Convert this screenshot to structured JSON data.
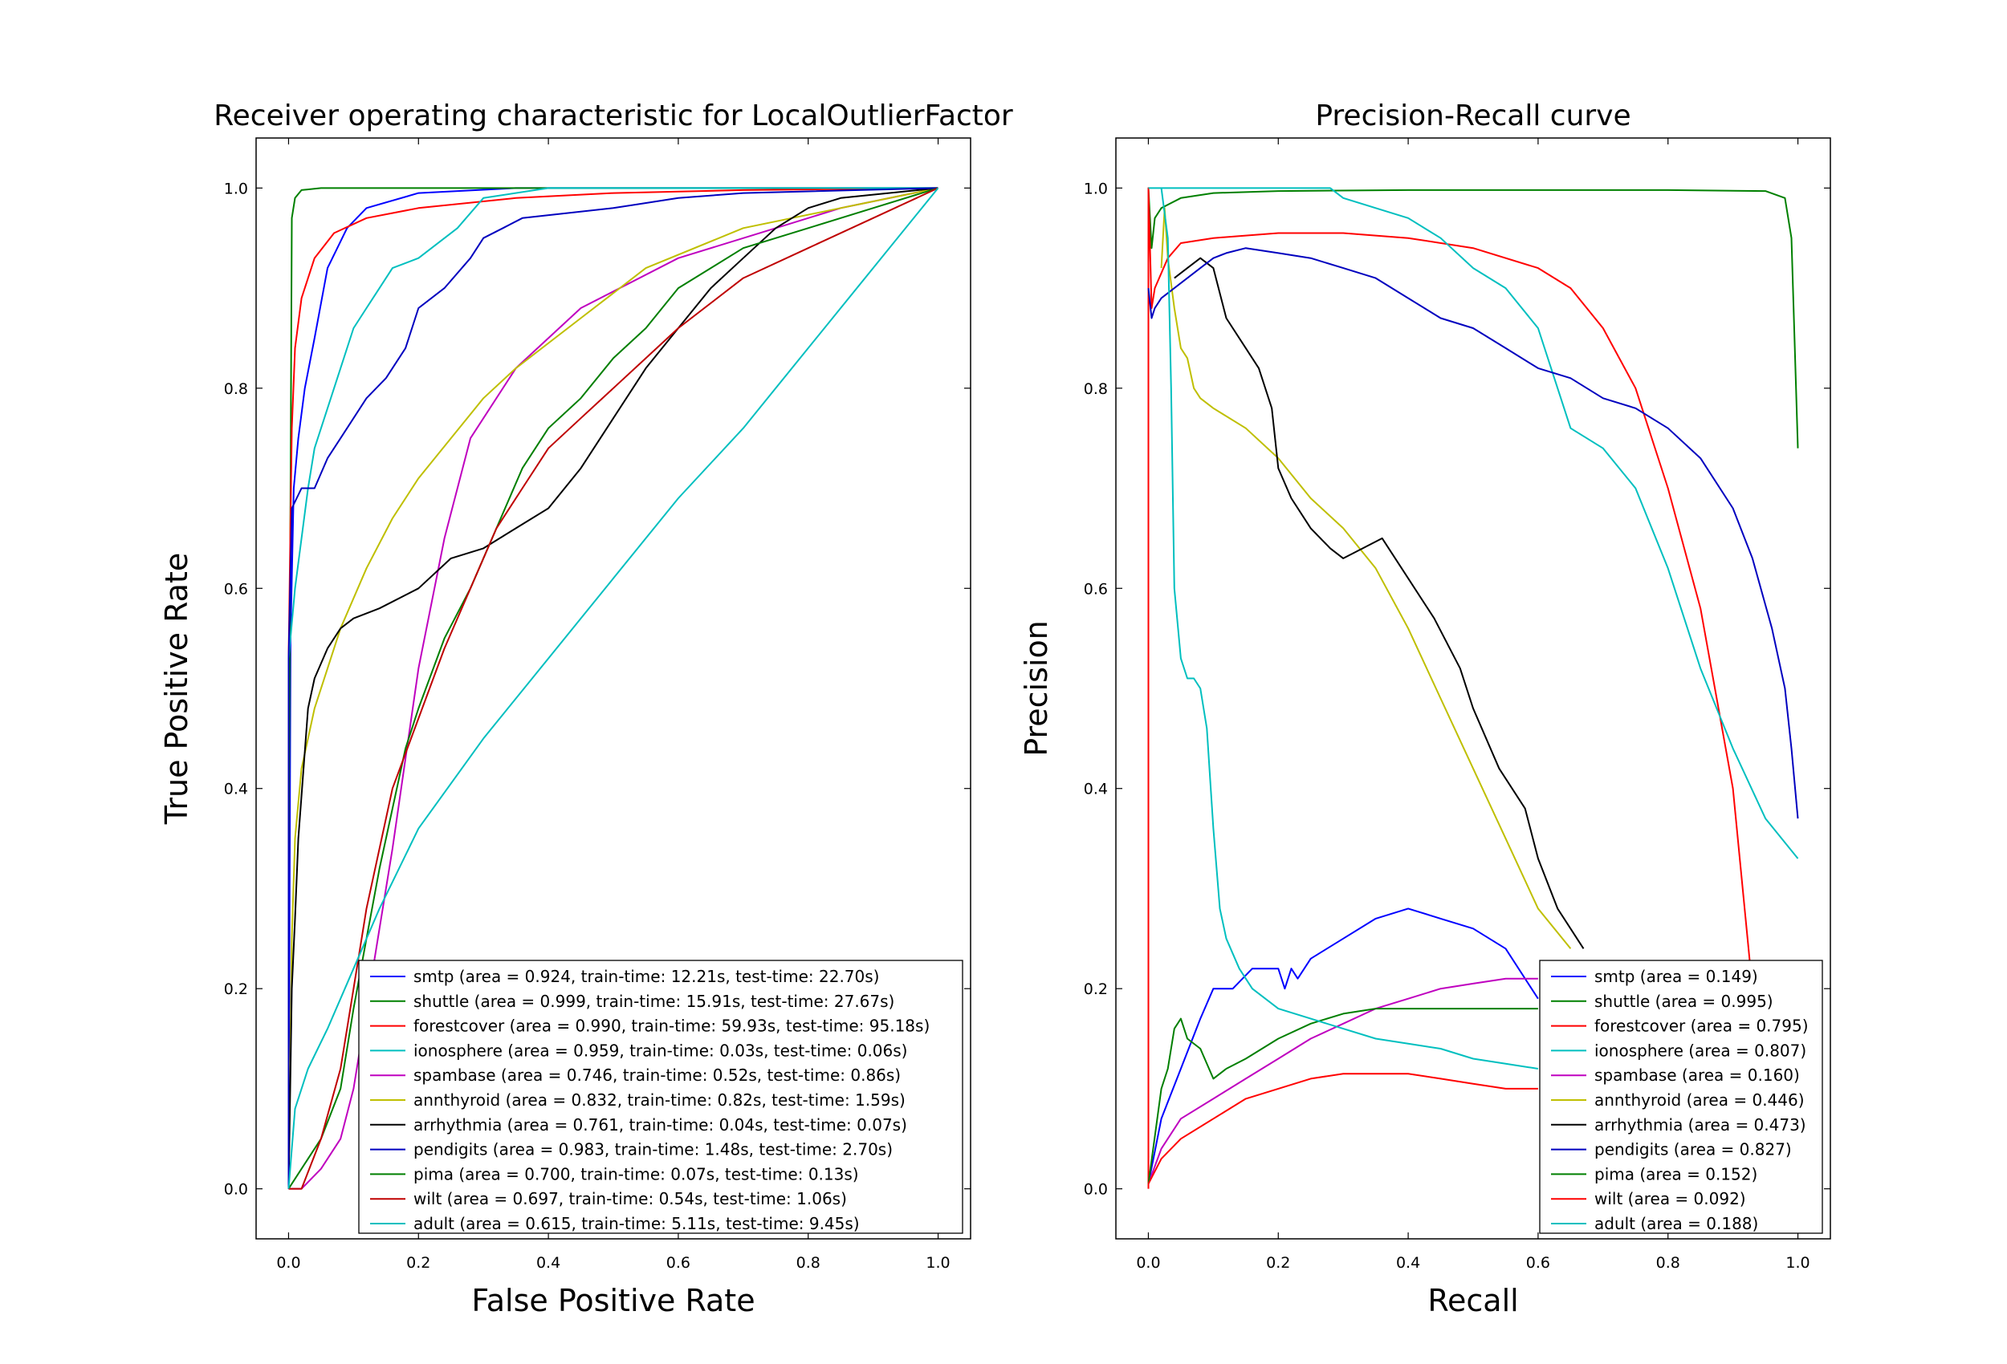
{
  "figure": {
    "panel_titles": [
      "Receiver operating characteristic for LocalOutlierFactor",
      "Precision-Recall curve"
    ]
  },
  "chart_data": [
    {
      "type": "line",
      "title": "Receiver operating characteristic for LocalOutlierFactor",
      "xlabel": "False Positive Rate",
      "ylabel": "True Positive Rate",
      "xlim": [
        -0.05,
        1.05
      ],
      "ylim": [
        -0.05,
        1.05
      ],
      "xticks": [
        "0.0",
        "0.2",
        "0.4",
        "0.6",
        "0.8",
        "1.0"
      ],
      "yticks": [
        "0.0",
        "0.2",
        "0.4",
        "0.6",
        "0.8",
        "1.0"
      ],
      "grid": false,
      "legend_position": "lower-right",
      "series": [
        {
          "name": "smtp (area = 0.924, train-time: 12.21s, test-time: 22.70s)",
          "color": "#0000ff",
          "x": [
            0,
            0.003,
            0.008,
            0.015,
            0.025,
            0.04,
            0.06,
            0.09,
            0.12,
            0.2,
            0.35,
            0.6,
            1.0
          ],
          "y": [
            0,
            0.55,
            0.7,
            0.75,
            0.8,
            0.85,
            0.92,
            0.96,
            0.98,
            0.995,
            1.0,
            1.0,
            1.0
          ]
        },
        {
          "name": "shuttle (area = 0.999, train-time: 15.91s, test-time: 27.67s)",
          "color": "#008000",
          "x": [
            0,
            0.0,
            0.005,
            0.01,
            0.02,
            0.05,
            0.2,
            0.6,
            1.0
          ],
          "y": [
            0,
            0.3,
            0.97,
            0.99,
            0.998,
            1.0,
            1.0,
            1.0,
            1.0
          ]
        },
        {
          "name": "forestcover (area = 0.990, train-time: 59.93s, test-time: 95.18s)",
          "color": "#ff0000",
          "x": [
            0,
            0.0,
            0.005,
            0.01,
            0.02,
            0.04,
            0.07,
            0.12,
            0.2,
            0.35,
            0.5,
            0.7,
            1.0
          ],
          "y": [
            0,
            0.53,
            0.76,
            0.84,
            0.89,
            0.93,
            0.955,
            0.97,
            0.98,
            0.99,
            0.995,
            0.998,
            1.0
          ]
        },
        {
          "name": "ionosphere (area = 0.959, train-time: 0.03s, test-time: 0.06s)",
          "color": "#00bfbf",
          "x": [
            0,
            0.0,
            0.01,
            0.03,
            0.04,
            0.06,
            0.08,
            0.1,
            0.12,
            0.14,
            0.16,
            0.2,
            0.26,
            0.3,
            0.4,
            0.55,
            0.7,
            1.0
          ],
          "y": [
            0,
            0.53,
            0.6,
            0.7,
            0.74,
            0.78,
            0.82,
            0.86,
            0.88,
            0.9,
            0.92,
            0.93,
            0.96,
            0.99,
            1.0,
            1.0,
            1.0,
            1.0
          ]
        },
        {
          "name": "spambase (area = 0.746, train-time: 0.52s, test-time: 0.86s)",
          "color": "#bf00bf",
          "x": [
            0,
            0.02,
            0.05,
            0.08,
            0.1,
            0.12,
            0.14,
            0.16,
            0.18,
            0.2,
            0.24,
            0.28,
            0.35,
            0.45,
            0.6,
            0.75,
            0.85,
            1.0
          ],
          "y": [
            0,
            0.0,
            0.02,
            0.05,
            0.1,
            0.18,
            0.26,
            0.34,
            0.43,
            0.52,
            0.65,
            0.75,
            0.82,
            0.88,
            0.93,
            0.96,
            0.98,
            1.0
          ]
        },
        {
          "name": "annthyroid (area = 0.832, train-time: 0.82s, test-time: 1.59s)",
          "color": "#bfbf00",
          "x": [
            0,
            0.005,
            0.01,
            0.02,
            0.04,
            0.06,
            0.08,
            0.12,
            0.16,
            0.2,
            0.25,
            0.3,
            0.35,
            0.45,
            0.55,
            0.7,
            0.85,
            1.0
          ],
          "y": [
            0,
            0.25,
            0.35,
            0.42,
            0.48,
            0.52,
            0.56,
            0.62,
            0.67,
            0.71,
            0.75,
            0.79,
            0.82,
            0.87,
            0.92,
            0.96,
            0.98,
            1.0
          ]
        },
        {
          "name": "arrhythmia (area = 0.761, train-time: 0.04s, test-time: 0.07s)",
          "color": "#000000",
          "x": [
            0,
            0.005,
            0.01,
            0.015,
            0.03,
            0.04,
            0.06,
            0.08,
            0.1,
            0.14,
            0.2,
            0.25,
            0.3,
            0.35,
            0.4,
            0.45,
            0.5,
            0.55,
            0.6,
            0.65,
            0.7,
            0.75,
            0.8,
            0.85,
            1.0
          ],
          "y": [
            0,
            0.2,
            0.27,
            0.35,
            0.48,
            0.51,
            0.54,
            0.56,
            0.57,
            0.58,
            0.6,
            0.63,
            0.64,
            0.66,
            0.68,
            0.72,
            0.77,
            0.82,
            0.86,
            0.9,
            0.93,
            0.96,
            0.98,
            0.99,
            1.0
          ]
        },
        {
          "name": "pendigits (area = 0.983, train-time: 1.48s, test-time: 2.70s)",
          "color": "#0000bf",
          "x": [
            0,
            0.0,
            0.005,
            0.02,
            0.04,
            0.06,
            0.08,
            0.1,
            0.12,
            0.15,
            0.18,
            0.2,
            0.24,
            0.28,
            0.3,
            0.33,
            0.36,
            0.5,
            0.6,
            0.7,
            1.0
          ],
          "y": [
            0,
            0.53,
            0.68,
            0.7,
            0.7,
            0.73,
            0.75,
            0.77,
            0.79,
            0.81,
            0.84,
            0.88,
            0.9,
            0.93,
            0.95,
            0.96,
            0.97,
            0.98,
            0.99,
            0.995,
            1.0
          ]
        },
        {
          "name": "pima (area = 0.700, train-time: 0.07s, test-time: 0.13s)",
          "color": "#007f00",
          "x": [
            0,
            0.02,
            0.05,
            0.08,
            0.1,
            0.12,
            0.14,
            0.16,
            0.18,
            0.2,
            0.24,
            0.28,
            0.32,
            0.36,
            0.4,
            0.45,
            0.5,
            0.55,
            0.6,
            0.7,
            0.8,
            0.9,
            1.0
          ],
          "y": [
            0,
            0.02,
            0.05,
            0.1,
            0.18,
            0.25,
            0.32,
            0.38,
            0.44,
            0.48,
            0.55,
            0.6,
            0.66,
            0.72,
            0.76,
            0.79,
            0.83,
            0.86,
            0.9,
            0.94,
            0.96,
            0.98,
            1.0
          ]
        },
        {
          "name": "wilt (area = 0.697, train-time: 0.54s, test-time: 1.06s)",
          "color": "#bf0000",
          "x": [
            0,
            0.02,
            0.05,
            0.08,
            0.1,
            0.12,
            0.14,
            0.16,
            0.2,
            0.24,
            0.28,
            0.32,
            0.36,
            0.4,
            0.45,
            0.5,
            0.55,
            0.6,
            0.7,
            0.8,
            0.9,
            1.0
          ],
          "y": [
            0,
            0.0,
            0.05,
            0.12,
            0.2,
            0.28,
            0.34,
            0.4,
            0.47,
            0.54,
            0.6,
            0.66,
            0.7,
            0.74,
            0.77,
            0.8,
            0.83,
            0.86,
            0.91,
            0.94,
            0.97,
            1.0
          ]
        },
        {
          "name": "adult (area = 0.615, train-time: 5.11s, test-time: 9.45s)",
          "color": "#00bfbf",
          "x": [
            0,
            0.01,
            0.03,
            0.06,
            0.1,
            0.14,
            0.2,
            0.3,
            0.4,
            0.5,
            0.6,
            0.7,
            0.8,
            0.9,
            1.0
          ],
          "y": [
            0,
            0.08,
            0.12,
            0.16,
            0.22,
            0.28,
            0.36,
            0.45,
            0.53,
            0.61,
            0.69,
            0.76,
            0.84,
            0.92,
            1.0
          ]
        }
      ]
    },
    {
      "type": "line",
      "title": "Precision-Recall curve",
      "xlabel": "Recall",
      "ylabel": "Precision",
      "xlim": [
        -0.05,
        1.05
      ],
      "ylim": [
        -0.05,
        1.05
      ],
      "xticks": [
        "0.0",
        "0.2",
        "0.4",
        "0.6",
        "0.8",
        "1.0"
      ],
      "yticks": [
        "0.0",
        "0.2",
        "0.4",
        "0.6",
        "0.8",
        "1.0"
      ],
      "grid": false,
      "legend_position": "lower-right",
      "series": [
        {
          "name": "smtp (area = 0.149)",
          "color": "#0000ff",
          "x": [
            0,
            0.02,
            0.05,
            0.08,
            0.1,
            0.13,
            0.16,
            0.2,
            0.21,
            0.22,
            0.23,
            0.25,
            0.3,
            0.35,
            0.4,
            0.45,
            0.5,
            0.55,
            0.6
          ],
          "y": [
            0.005,
            0.07,
            0.12,
            0.17,
            0.2,
            0.2,
            0.22,
            0.22,
            0.2,
            0.22,
            0.21,
            0.23,
            0.25,
            0.27,
            0.28,
            0.27,
            0.26,
            0.24,
            0.19
          ]
        },
        {
          "name": "shuttle (area = 0.995)",
          "color": "#008000",
          "x": [
            0.0,
            0.0,
            0.005,
            0.01,
            0.02,
            0.05,
            0.1,
            0.2,
            0.4,
            0.6,
            0.8,
            0.95,
            0.98,
            0.99,
            1.0
          ],
          "y": [
            0.2,
            1.0,
            0.94,
            0.97,
            0.98,
            0.99,
            0.995,
            0.997,
            0.998,
            0.998,
            0.998,
            0.997,
            0.99,
            0.95,
            0.74
          ]
        },
        {
          "name": "forestcover (area = 0.795)",
          "color": "#ff0000",
          "x": [
            0.0,
            0.0,
            0.005,
            0.01,
            0.03,
            0.05,
            0.1,
            0.2,
            0.3,
            0.4,
            0.5,
            0.6,
            0.65,
            0.7,
            0.75,
            0.8,
            0.85,
            0.9,
            0.93
          ],
          "y": [
            0.0,
            1.0,
            0.88,
            0.9,
            0.93,
            0.945,
            0.95,
            0.955,
            0.955,
            0.95,
            0.94,
            0.92,
            0.9,
            0.86,
            0.8,
            0.7,
            0.58,
            0.4,
            0.2
          ]
        },
        {
          "name": "ionosphere (area = 0.807)",
          "color": "#00bfbf",
          "x": [
            0.0,
            0.05,
            0.1,
            0.15,
            0.2,
            0.25,
            0.28,
            0.3,
            0.35,
            0.4,
            0.45,
            0.5,
            0.55,
            0.6,
            0.63,
            0.65,
            0.7,
            0.75,
            0.8,
            0.85,
            0.9,
            0.95,
            1.0
          ],
          "y": [
            1.0,
            1.0,
            1.0,
            1.0,
            1.0,
            1.0,
            1.0,
            0.99,
            0.98,
            0.97,
            0.95,
            0.92,
            0.9,
            0.86,
            0.8,
            0.76,
            0.74,
            0.7,
            0.62,
            0.52,
            0.44,
            0.37,
            0.33
          ]
        },
        {
          "name": "spambase (area = 0.160)",
          "color": "#bf00bf",
          "x": [
            0.0,
            0.02,
            0.05,
            0.1,
            0.15,
            0.2,
            0.25,
            0.3,
            0.35,
            0.4,
            0.45,
            0.5,
            0.55,
            0.6
          ],
          "y": [
            0.005,
            0.04,
            0.07,
            0.09,
            0.11,
            0.13,
            0.15,
            0.165,
            0.18,
            0.19,
            0.2,
            0.205,
            0.21,
            0.21
          ]
        },
        {
          "name": "annthyroid (area = 0.446)",
          "color": "#bfbf00",
          "x": [
            0.02,
            0.025,
            0.03,
            0.04,
            0.05,
            0.06,
            0.07,
            0.08,
            0.1,
            0.15,
            0.2,
            0.25,
            0.3,
            0.35,
            0.4,
            0.45,
            0.5,
            0.55,
            0.6,
            0.65
          ],
          "y": [
            0.92,
            0.98,
            0.93,
            0.88,
            0.84,
            0.83,
            0.8,
            0.79,
            0.78,
            0.76,
            0.73,
            0.69,
            0.66,
            0.62,
            0.56,
            0.49,
            0.42,
            0.35,
            0.28,
            0.24
          ]
        },
        {
          "name": "arrhythmia (area = 0.473)",
          "color": "#000000",
          "x": [
            0.04,
            0.06,
            0.08,
            0.1,
            0.12,
            0.15,
            0.17,
            0.19,
            0.2,
            0.22,
            0.25,
            0.28,
            0.3,
            0.33,
            0.36,
            0.4,
            0.44,
            0.48,
            0.5,
            0.54,
            0.58,
            0.6,
            0.63,
            0.67
          ],
          "y": [
            0.91,
            0.92,
            0.93,
            0.92,
            0.87,
            0.84,
            0.82,
            0.78,
            0.72,
            0.69,
            0.66,
            0.64,
            0.63,
            0.64,
            0.65,
            0.61,
            0.57,
            0.52,
            0.48,
            0.42,
            0.38,
            0.33,
            0.28,
            0.24
          ]
        },
        {
          "name": "pendigits (area = 0.827)",
          "color": "#0000bf",
          "x": [
            0.0,
            0.005,
            0.01,
            0.02,
            0.04,
            0.06,
            0.08,
            0.1,
            0.12,
            0.15,
            0.2,
            0.25,
            0.3,
            0.35,
            0.4,
            0.45,
            0.5,
            0.55,
            0.6,
            0.65,
            0.7,
            0.75,
            0.8,
            0.85,
            0.9,
            0.93,
            0.96,
            0.98,
            0.99,
            1.0
          ],
          "y": [
            0.9,
            0.87,
            0.88,
            0.89,
            0.9,
            0.91,
            0.92,
            0.93,
            0.935,
            0.94,
            0.935,
            0.93,
            0.92,
            0.91,
            0.89,
            0.87,
            0.86,
            0.84,
            0.82,
            0.81,
            0.79,
            0.78,
            0.76,
            0.73,
            0.68,
            0.63,
            0.56,
            0.5,
            0.44,
            0.37
          ]
        },
        {
          "name": "pima (area = 0.152)",
          "color": "#007f00",
          "x": [
            0.0,
            0.02,
            0.03,
            0.04,
            0.05,
            0.06,
            0.08,
            0.1,
            0.12,
            0.15,
            0.2,
            0.25,
            0.3,
            0.35,
            0.4,
            0.45,
            0.5,
            0.55,
            0.6
          ],
          "y": [
            0.005,
            0.1,
            0.12,
            0.16,
            0.17,
            0.15,
            0.14,
            0.11,
            0.12,
            0.13,
            0.15,
            0.165,
            0.175,
            0.18,
            0.18,
            0.18,
            0.18,
            0.18,
            0.18
          ]
        },
        {
          "name": "wilt (area = 0.092)",
          "color": "#ff0000",
          "x": [
            0.0,
            0.02,
            0.05,
            0.1,
            0.15,
            0.2,
            0.25,
            0.3,
            0.35,
            0.4,
            0.45,
            0.5,
            0.55,
            0.6
          ],
          "y": [
            0.005,
            0.03,
            0.05,
            0.07,
            0.09,
            0.1,
            0.11,
            0.115,
            0.115,
            0.115,
            0.11,
            0.105,
            0.1,
            0.1
          ]
        },
        {
          "name": "adult (area = 0.188)",
          "color": "#00bfbf",
          "x": [
            0.02,
            0.03,
            0.035,
            0.04,
            0.05,
            0.06,
            0.07,
            0.08,
            0.09,
            0.1,
            0.11,
            0.12,
            0.14,
            0.16,
            0.2,
            0.25,
            0.3,
            0.35,
            0.4,
            0.45,
            0.5,
            0.55,
            0.6
          ],
          "y": [
            1.0,
            0.95,
            0.8,
            0.6,
            0.53,
            0.51,
            0.51,
            0.5,
            0.46,
            0.36,
            0.28,
            0.25,
            0.22,
            0.2,
            0.18,
            0.17,
            0.16,
            0.15,
            0.145,
            0.14,
            0.13,
            0.125,
            0.12
          ]
        }
      ]
    }
  ]
}
